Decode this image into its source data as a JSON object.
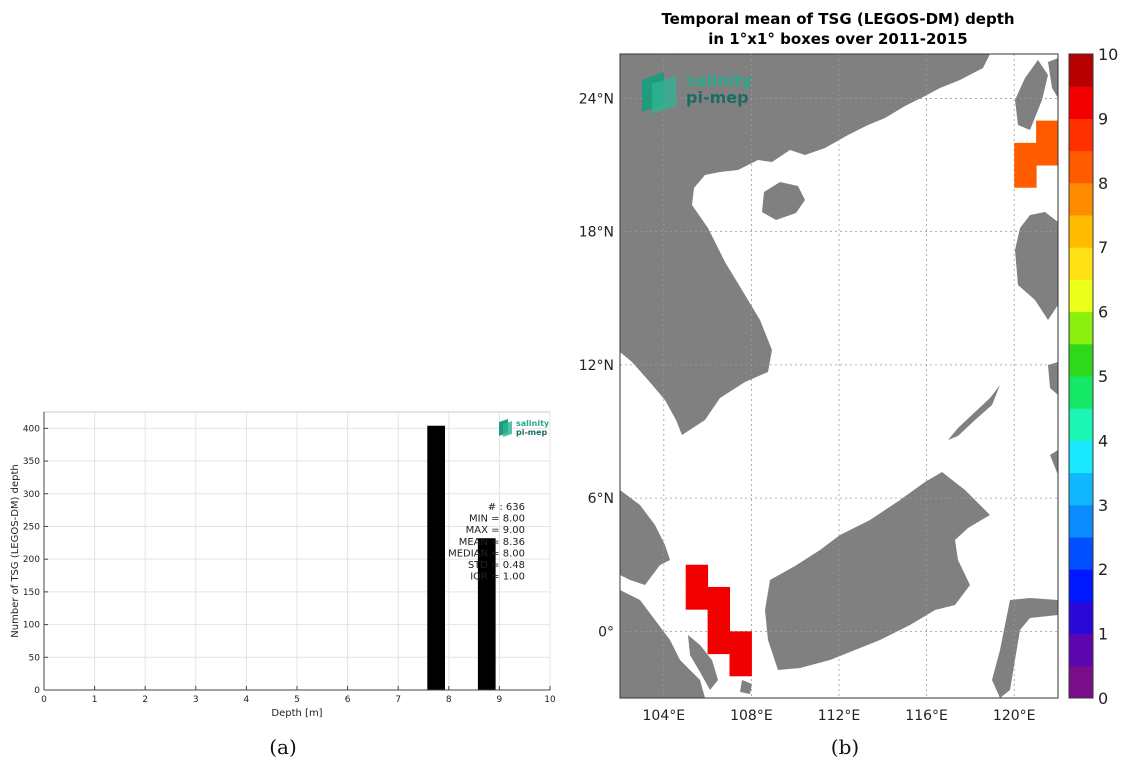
{
  "chart_data": [
    {
      "type": "bar",
      "panel_caption": "(a)",
      "xlabel": "Depth [m]",
      "ylabel": "Number of TSG (LEGOS-DM) depth",
      "xlim": [
        0,
        10
      ],
      "ylim": [
        0,
        425
      ],
      "x_ticks": [
        "0",
        "1",
        "2",
        "3",
        "4",
        "5",
        "6",
        "7",
        "8",
        "9",
        "10"
      ],
      "y_ticks": [
        "0",
        "50",
        "100",
        "150",
        "200",
        "250",
        "300",
        "350",
        "400"
      ],
      "grid": true,
      "x": [
        7.75,
        8.75
      ],
      "values": [
        404,
        232
      ],
      "bar_width": 0.35,
      "logo": {
        "line1": "salinity",
        "line2": "pi-mep"
      },
      "stats": [
        "# : 636",
        "MIN = 8.00",
        "MAX =  9.00",
        "MEAN = 8.36",
        "MEDIAN = 8.00",
        "STD = 0.48",
        "IQR = 1.00"
      ]
    },
    {
      "type": "heatmap",
      "panel_caption": "(b)",
      "title": "Temporal mean of TSG (LEGOS-DM) depth",
      "subtitle": "in 1°x1° boxes over 2011-2015",
      "lon_range": [
        102,
        122
      ],
      "lat_range": [
        -3,
        26
      ],
      "lon_ticks": [
        {
          "value": 104,
          "label": "104°E"
        },
        {
          "value": 108,
          "label": "108°E"
        },
        {
          "value": 112,
          "label": "112°E"
        },
        {
          "value": 116,
          "label": "116°E"
        },
        {
          "value": 120,
          "label": "120°E"
        }
      ],
      "lat_ticks": [
        {
          "value": 24,
          "label": "24°N"
        },
        {
          "value": 18,
          "label": "18°N"
        },
        {
          "value": 12,
          "label": "12°N"
        },
        {
          "value": 6,
          "label": "6°N"
        },
        {
          "value": 0,
          "label": "0°"
        }
      ],
      "grid": true,
      "colorbar": {
        "range": [
          0,
          10
        ],
        "ticks": [
          "0",
          "1",
          "2",
          "3",
          "4",
          "5",
          "6",
          "7",
          "8",
          "9",
          "10"
        ],
        "colors": [
          "#7a0d8a",
          "#5c06b0",
          "#2a08d8",
          "#0018ff",
          "#0050ff",
          "#0a8cff",
          "#12b8ff",
          "#1ae8ff",
          "#1cf5b4",
          "#14e866",
          "#2ed81a",
          "#8bf010",
          "#eaff1a",
          "#ffe014",
          "#ffbc00",
          "#ff8c00",
          "#ff5c00",
          "#ff3000",
          "#f20000",
          "#b80000"
        ]
      },
      "cells": [
        {
          "lon": 105.5,
          "lat": 2.5,
          "value": 9.3
        },
        {
          "lon": 105.5,
          "lat": 1.5,
          "value": 9.3
        },
        {
          "lon": 106.5,
          "lat": 1.5,
          "value": 9.3
        },
        {
          "lon": 106.5,
          "lat": 0.5,
          "value": 9.3
        },
        {
          "lon": 106.5,
          "lat": -0.5,
          "value": 9.3
        },
        {
          "lon": 107.5,
          "lat": -0.5,
          "value": 9.3
        },
        {
          "lon": 107.5,
          "lat": -1.5,
          "value": 9.3
        },
        {
          "lon": 120.5,
          "lat": 21.5,
          "value": 8.4
        },
        {
          "lon": 120.5,
          "lat": 20.5,
          "value": 8.4
        },
        {
          "lon": 121.5,
          "lat": 22.5,
          "value": 8.4
        },
        {
          "lon": 121.5,
          "lat": 21.5,
          "value": 8.4
        }
      ],
      "land_color": "#808080",
      "logo": {
        "line1": "salinity",
        "line2": "pi-mep"
      }
    }
  ]
}
